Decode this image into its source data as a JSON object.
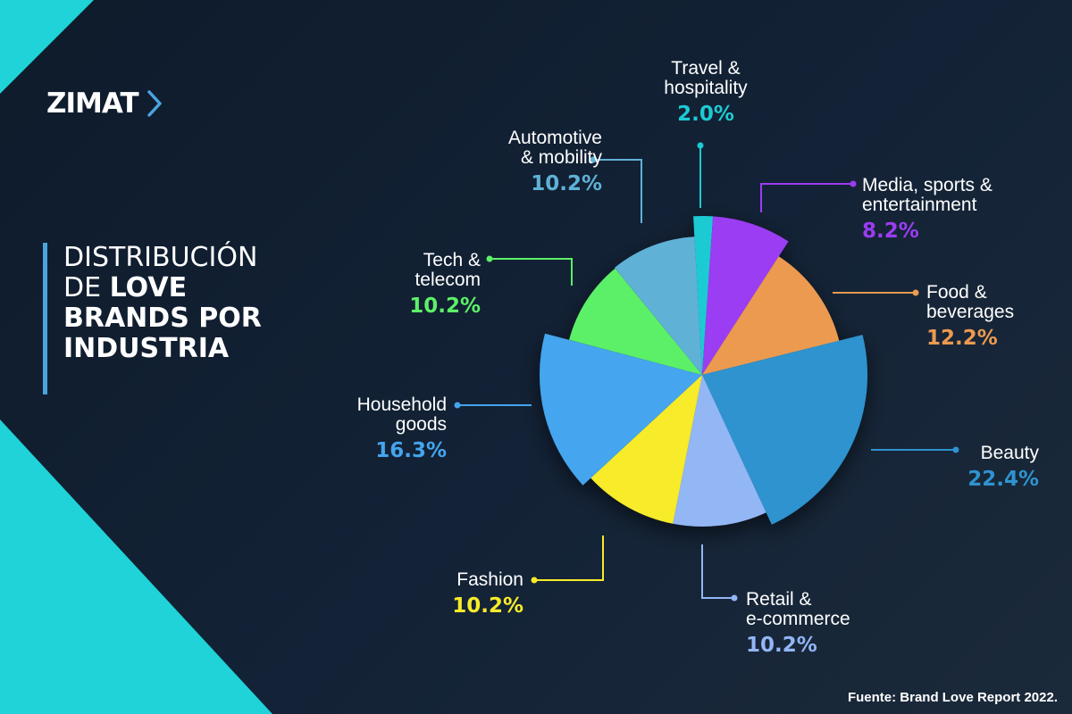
{
  "brand": {
    "name": "ZIMAT"
  },
  "title": {
    "line1": "DISTRIBUCIÓN",
    "line2_light": "DE",
    "line2_bold": "LOVE",
    "line3": "BRANDS POR",
    "line4": "INDUSTRIA"
  },
  "source": "Fuente: Brand Love Report 2022.",
  "chart_data": {
    "type": "pie",
    "unit": "%",
    "slices": [
      {
        "name": [
          "Travel &",
          "hospitality"
        ],
        "value": 2.0,
        "value_label": "2.0%",
        "color": "#1ccad3"
      },
      {
        "name": [
          "Media, sports &",
          "entertainment"
        ],
        "value": 8.2,
        "value_label": "8.2%",
        "color": "#9b3cf2"
      },
      {
        "name": [
          "Food &",
          "beverages"
        ],
        "value": 12.2,
        "value_label": "12.2%",
        "color": "#ec9a4f"
      },
      {
        "name": [
          "Beauty"
        ],
        "value": 22.4,
        "value_label": "22.4%",
        "color": "#2f93cf"
      },
      {
        "name": [
          "Retail &",
          "e-commerce"
        ],
        "value": 10.2,
        "value_label": "10.2%",
        "color": "#93b6f5"
      },
      {
        "name": [
          "Fashion"
        ],
        "value": 10.2,
        "value_label": "10.2%",
        "color": "#f7eb2a"
      },
      {
        "name": [
          "Household",
          "goods"
        ],
        "value": 16.3,
        "value_label": "16.3%",
        "color": "#44a5ee"
      },
      {
        "name": [
          "Tech &",
          "telecom"
        ],
        "value": 10.2,
        "value_label": "10.2%",
        "color": "#5cf067"
      },
      {
        "name": [
          "Automotive",
          "& mobility"
        ],
        "value": 10.2,
        "value_label": "10.2%",
        "color": "#5fb1d6"
      }
    ]
  }
}
